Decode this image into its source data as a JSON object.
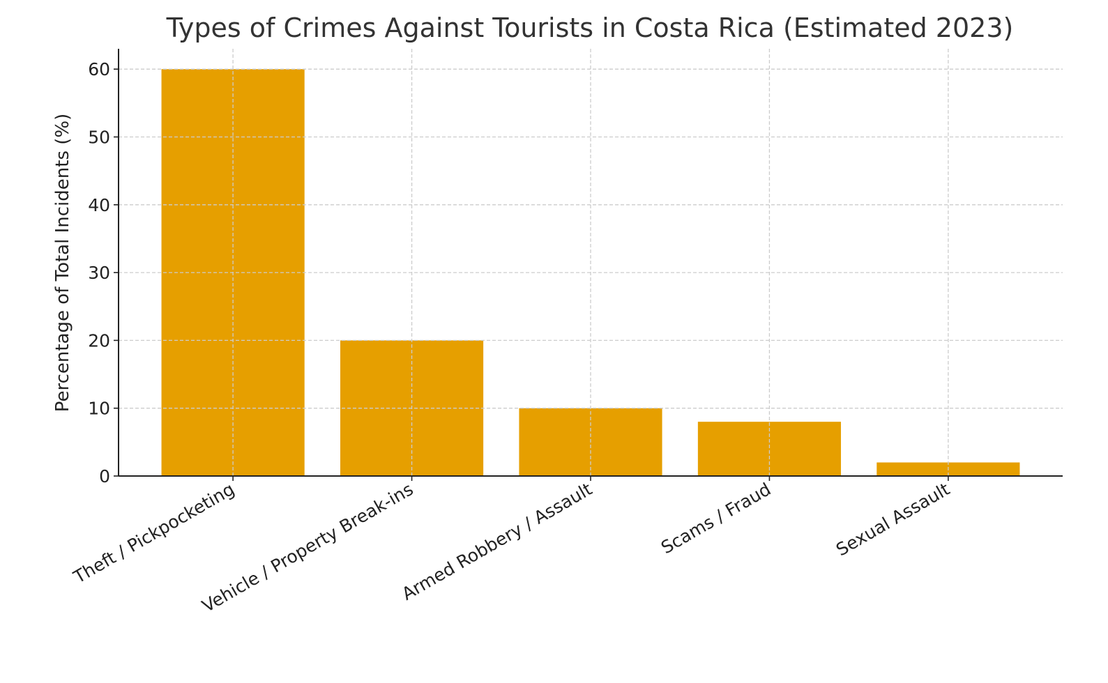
{
  "chart_data": {
    "type": "bar",
    "title": "Types of Crimes Against Tourists in Costa Rica (Estimated 2023)",
    "xlabel": "",
    "ylabel": "Percentage of Total Incidents (%)",
    "categories": [
      "Theft / Pickpocketing",
      "Vehicle / Property Break-ins",
      "Armed Robbery / Assault",
      "Scams / Fraud",
      "Sexual Assault"
    ],
    "values": [
      60,
      20,
      10,
      8,
      2
    ],
    "ylim": [
      0,
      63
    ],
    "yticks": [
      0,
      10,
      20,
      30,
      40,
      50,
      60
    ],
    "grid": true,
    "bar_color": "#E69F00"
  }
}
